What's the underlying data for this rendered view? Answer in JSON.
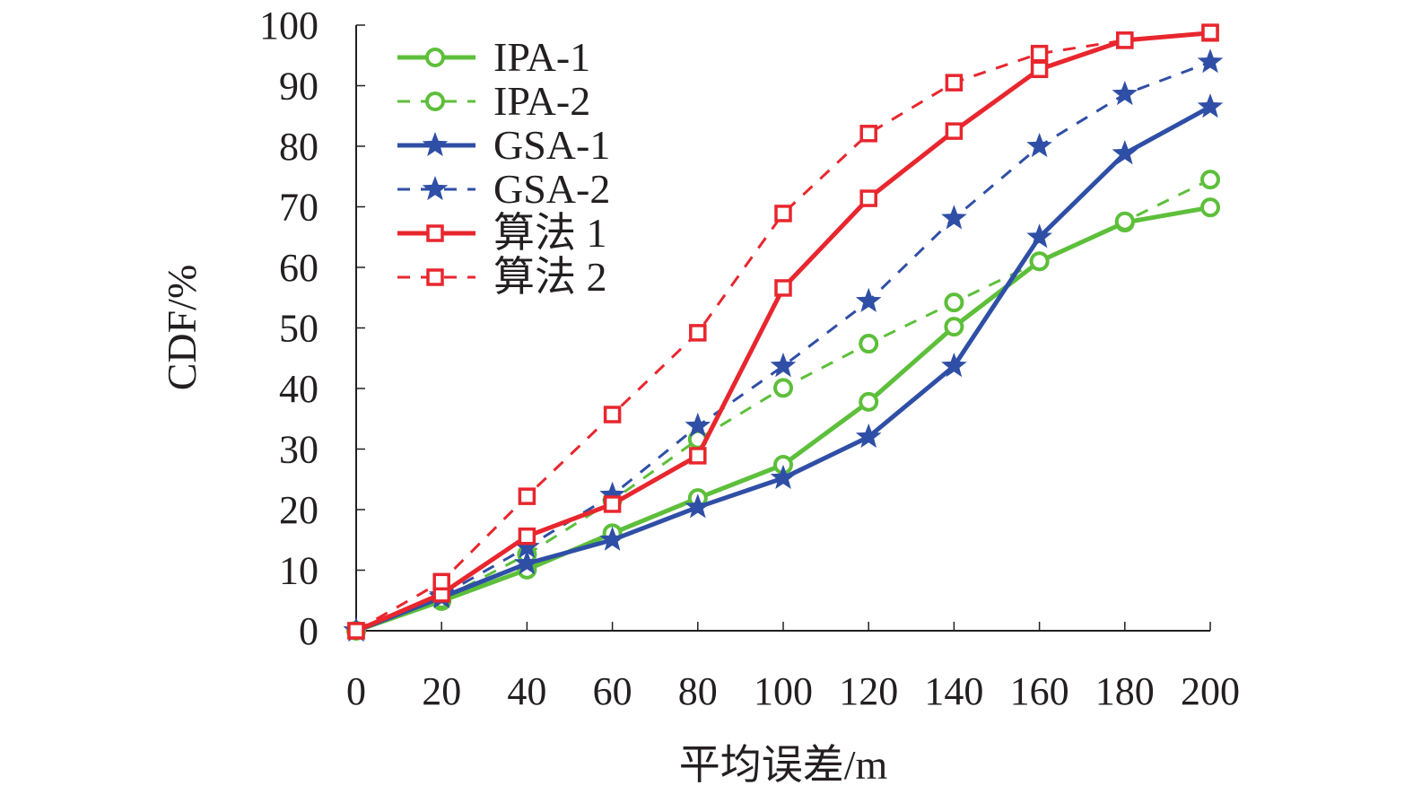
{
  "chart_data": {
    "type": "line",
    "title": "",
    "xlabel": "平均误差/m",
    "ylabel": "CDF/%",
    "xlim": [
      0,
      200
    ],
    "ylim": [
      0,
      100
    ],
    "x": [
      0,
      20,
      40,
      60,
      80,
      100,
      120,
      140,
      160,
      180,
      200
    ],
    "xticks": [
      "0",
      "20",
      "40",
      "60",
      "80",
      "100",
      "120",
      "140",
      "160",
      "180",
      "200"
    ],
    "yticks": [
      "0",
      "10",
      "20",
      "30",
      "40",
      "50",
      "60",
      "70",
      "80",
      "90",
      "100"
    ],
    "grid": false,
    "legend_position": "top-left",
    "series": [
      {
        "name": "IPA-1",
        "color": "#5dbf3a",
        "style": "solid",
        "marker": "circle",
        "values": [
          0,
          4.9,
          10.1,
          16.1,
          21.9,
          27.4,
          37.8,
          50.2,
          61.0,
          67.4,
          69.9
        ]
      },
      {
        "name": "IPA-2",
        "color": "#5dbf3a",
        "style": "dashed",
        "marker": "circle",
        "values": [
          0,
          5.2,
          12.6,
          21.5,
          31.6,
          40.1,
          47.4,
          54.2,
          61.0,
          67.6,
          74.5
        ]
      },
      {
        "name": "GSA-1",
        "color": "#2f4fa6",
        "style": "solid",
        "marker": "star",
        "values": [
          0,
          5.5,
          11.1,
          15.0,
          20.4,
          25.2,
          32.0,
          43.7,
          65.0,
          78.8,
          86.5
        ]
      },
      {
        "name": "GSA-2",
        "color": "#2f4fa6",
        "style": "dashed",
        "marker": "star",
        "values": [
          0,
          5.8,
          13.8,
          22.4,
          33.8,
          43.7,
          54.4,
          68.1,
          80.0,
          88.6,
          93.9
        ]
      },
      {
        "name": "算法 1",
        "color": "#e8262e",
        "style": "solid",
        "marker": "square",
        "values": [
          0,
          6.1,
          15.6,
          20.9,
          28.9,
          56.6,
          71.4,
          82.5,
          92.7,
          97.5,
          98.7
        ]
      },
      {
        "name": "算法 2",
        "color": "#e8262e",
        "style": "dashed",
        "marker": "square",
        "values": [
          0,
          8.1,
          22.2,
          35.7,
          49.2,
          68.9,
          82.1,
          90.5,
          95.3,
          97.5,
          98.8
        ]
      }
    ]
  }
}
